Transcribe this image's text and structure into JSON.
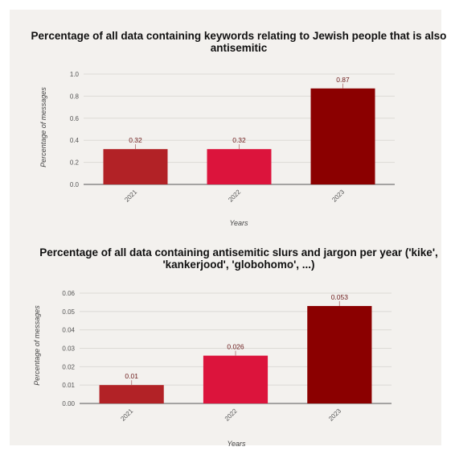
{
  "chart_data": [
    {
      "type": "bar",
      "title_line1": "Percentage of all data containing keywords relating to Jewish people that is also",
      "title_line2": "antisemitic",
      "xlabel": "Years",
      "ylabel": "Percentage of messages",
      "categories": [
        "2021",
        "2022",
        "2023"
      ],
      "values": [
        0.32,
        0.32,
        0.87
      ],
      "value_labels": [
        "0.32",
        "0.32",
        "0.87"
      ],
      "colors": [
        "#b22226",
        "#dc143c",
        "#8b0000"
      ],
      "ylim": [
        0,
        1.0
      ],
      "yticks": [
        "0.0",
        "0.2",
        "0.4",
        "0.6",
        "0.8",
        "1.0"
      ],
      "grid": true
    },
    {
      "type": "bar",
      "title_line1": "Percentage of all data containing antisemitic slurs and jargon per year ('kike',",
      "title_line2": "'kankerjood', 'globohomo', ...)",
      "xlabel": "Years",
      "ylabel": "Percentage of messages",
      "categories": [
        "2021",
        "2022",
        "2023"
      ],
      "values": [
        0.01,
        0.026,
        0.053
      ],
      "value_labels": [
        "0.01",
        "0.026",
        "0.053"
      ],
      "colors": [
        "#b22226",
        "#dc143c",
        "#8b0000"
      ],
      "ylim": [
        0,
        0.06
      ],
      "yticks": [
        "0.00",
        "0.01",
        "0.02",
        "0.03",
        "0.04",
        "0.05",
        "0.06"
      ],
      "grid": true
    }
  ]
}
